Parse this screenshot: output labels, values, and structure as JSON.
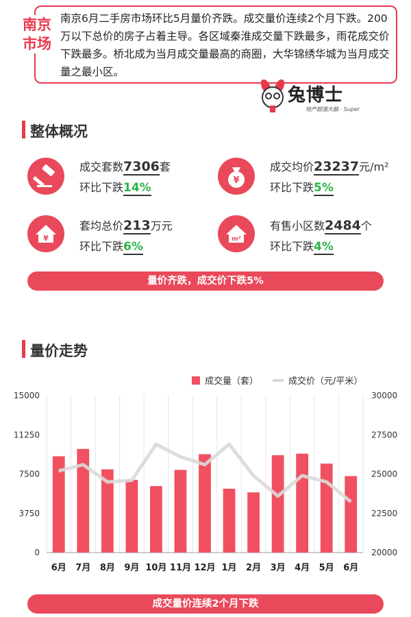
{
  "header": {
    "city": "南京市场",
    "summary": "南京6月二手房市场环比5月量价齐跌。成交量价连续2个月下跌。200万以下总价的房子占着主导。各区域秦淮成交量下跌最多，雨花成交价下跌最多。桥北成为当月成交量最高的商圈，大华锦绣华城为当月成交量之最小区。",
    "logo_text": "兔博士",
    "logo_slogan": "地产超强大脑 · Super"
  },
  "overview": {
    "title": "整体概况",
    "stats": [
      {
        "icon": "gavel-icon",
        "label_pre": "成交套数",
        "value": "7306",
        "unit": "套",
        "change_label": "环比下跌",
        "change": "14%"
      },
      {
        "icon": "money-bag-icon",
        "label_pre": "成交均价",
        "value": "23237",
        "unit": "元/m²",
        "change_label": "环比下跌",
        "change": "5%"
      },
      {
        "icon": "house-yuan-icon",
        "label_pre": "套均总价",
        "value": "213",
        "unit": "万元",
        "change_label": "环比下跌",
        "change": "6%"
      },
      {
        "icon": "house-m2-icon",
        "label_pre": "有售小区数",
        "value": "2484",
        "unit": "个",
        "change_label": "环比下跌",
        "change": "4%"
      }
    ],
    "banner": "量价齐跌，成交价下跌5%"
  },
  "trend": {
    "title": "量价走势",
    "banner": "成交量价连续2个月下跌"
  },
  "colors": {
    "accent": "#e8394d",
    "bar": "#f0505f",
    "line": "#d9d9d9",
    "up_green": "#2db34a"
  },
  "chart_data": {
    "type": "bar",
    "categories": [
      "6月",
      "7月",
      "8月",
      "9月",
      "10月",
      "11月",
      "12月",
      "1月",
      "2月",
      "3月",
      "4月",
      "5月",
      "6月"
    ],
    "series": [
      {
        "name": "成交量（套）",
        "type": "bar",
        "axis": "left",
        "values": [
          9200,
          9900,
          7950,
          6950,
          6350,
          7900,
          9400,
          6100,
          5750,
          9300,
          9450,
          8500,
          7306
        ]
      },
      {
        "name": "成交价（元/平米）",
        "type": "line",
        "axis": "right",
        "values": [
          25200,
          25600,
          24500,
          24600,
          26900,
          26100,
          25600,
          26900,
          24900,
          23600,
          24900,
          24500,
          23237
        ]
      }
    ],
    "y_left": {
      "min": 0,
      "max": 15000,
      "ticks": [
        "0",
        "3750",
        "7500",
        "11250",
        "15000"
      ]
    },
    "y_right": {
      "min": 20000,
      "max": 30000,
      "ticks": [
        "20000",
        "22500",
        "25000",
        "27500",
        "30000"
      ]
    },
    "legend_position": "top-right",
    "grid": "vertical"
  }
}
